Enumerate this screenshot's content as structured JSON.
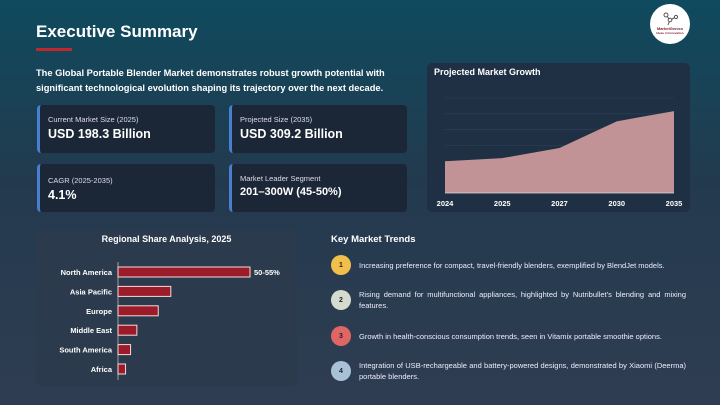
{
  "header": {
    "title": "Executive Summary",
    "logo_text": "MarketGenics",
    "logo_tagline": "Ideas in Innovation"
  },
  "intro": "The Global Portable Blender Market demonstrates robust growth potential with significant technological evolution shaping its trajectory over the next decade.",
  "cards": [
    {
      "label": "Current Market Size (2025)",
      "value": "USD 198.3 Billion"
    },
    {
      "label": "Projected Size (2035)",
      "value": "USD 309.2 Billion"
    },
    {
      "label": "CAGR (2025-2035)",
      "value": "4.1%"
    },
    {
      "label": "Market Leader Segment",
      "value": "201–300W (45-50%)"
    }
  ],
  "accent_color": "#4a7fd0",
  "chart_data": [
    {
      "type": "area",
      "title": "Projected Market Growth",
      "categories": [
        "2024",
        "2025",
        "2027",
        "2030",
        "2035"
      ],
      "values": [
        191,
        198.3,
        222,
        285,
        309.2
      ],
      "ylim": [
        116,
        340
      ],
      "grid": true,
      "color": "#c19396"
    },
    {
      "type": "bar",
      "orientation": "horizontal",
      "title": "Regional Share Analysis, 2025",
      "categories": [
        "North America",
        "Asia Pacific",
        "Europe",
        "Middle East",
        "South America",
        "Africa"
      ],
      "values": [
        52.5,
        21,
        16,
        7.5,
        5,
        3
      ],
      "data_labels": [
        "50-55%",
        "",
        "",
        "",
        "",
        ""
      ],
      "color": "#9b1c28"
    }
  ],
  "trends": {
    "title": "Key Market Trends",
    "items": [
      {
        "num": "1",
        "color": "#f2c04a",
        "text": "Increasing preference for compact, travel-friendly blenders, exemplified by BlendJet models."
      },
      {
        "num": "2",
        "color": "#d5dccf",
        "text": "Rising demand for multifunctional appliances, highlighted by Nutribullet’s blending and mixing features."
      },
      {
        "num": "3",
        "color": "#e06565",
        "text": "Growth in health-conscious consumption trends, seen in Vitamix portable smoothie options."
      },
      {
        "num": "4",
        "color": "#a9c1d6",
        "text": "Integration of USB-rechargeable and battery-powered designs, demonstrated by Xiaomi (Deerma) portable blenders."
      }
    ]
  }
}
